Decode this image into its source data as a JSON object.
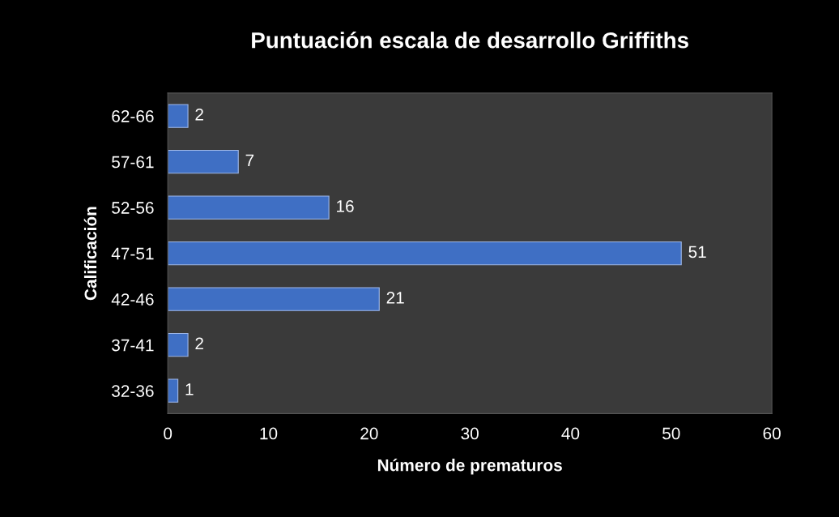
{
  "chart_data": {
    "type": "bar",
    "orientation": "horizontal",
    "title": "Puntuación escala de desarrollo Griffiths",
    "xlabel": "Número de prematuros",
    "ylabel": "Calificación",
    "categories": [
      "62-66",
      "57-61",
      "52-56",
      "47-51",
      "42-46",
      "37-41",
      "32-36"
    ],
    "values": [
      2,
      7,
      16,
      51,
      21,
      2,
      1
    ],
    "color": "#3f6fc4",
    "xlim": [
      0,
      60
    ],
    "xticks": [
      0,
      10,
      20,
      30,
      40,
      50,
      60
    ],
    "data_labels": true,
    "grid": false,
    "legend": false
  }
}
